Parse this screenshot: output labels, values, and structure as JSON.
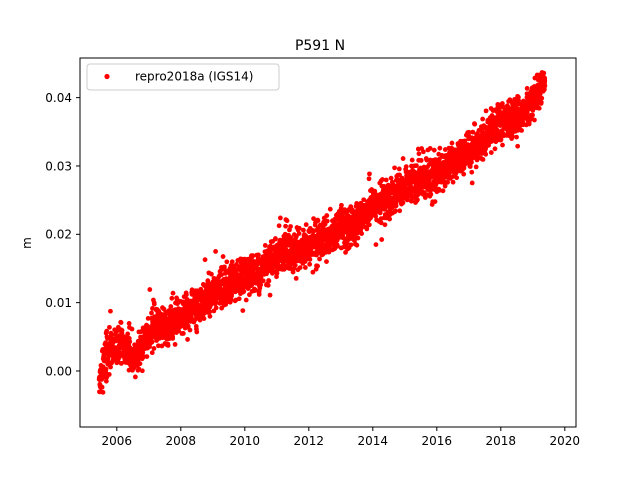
{
  "chart_data": {
    "type": "scatter",
    "title": "P591 N",
    "xlabel": "",
    "ylabel": "m",
    "xlim": [
      2004.85,
      2020.35
    ],
    "ylim": [
      -0.0082,
      0.0458
    ],
    "xticks": [
      2006,
      2008,
      2010,
      2012,
      2014,
      2016,
      2018,
      2020
    ],
    "xtick_labels": [
      "2006",
      "2008",
      "2010",
      "2012",
      "2014",
      "2016",
      "2018",
      "2020"
    ],
    "yticks": [
      0.0,
      0.01,
      0.02,
      0.03,
      0.04
    ],
    "ytick_labels": [
      "0.00",
      "0.01",
      "0.02",
      "0.03",
      "0.04"
    ],
    "grid": false,
    "legend": {
      "location": "upper-left",
      "entries": [
        "repro2018a (IGS14)"
      ]
    },
    "series": [
      {
        "name": "repro2018a (IGS14)",
        "color": "#ff0000",
        "marker": "circle",
        "x_range": [
          2005.45,
          2019.38
        ],
        "trend": {
          "y_at_2006": 0.0035,
          "slope_per_year": 0.0028
        },
        "approx_scatter_std": 0.0014,
        "x": [
          2005.5,
          2005.8,
          2006.0,
          2006.3,
          2006.6,
          2006.9,
          2007.2,
          2007.5,
          2007.8,
          2008.0,
          2008.5,
          2009.0,
          2009.5,
          2010.0,
          2010.5,
          2011.0,
          2011.5,
          2012.0,
          2012.5,
          2013.0,
          2013.5,
          2014.0,
          2014.5,
          2015.0,
          2015.5,
          2016.0,
          2016.5,
          2017.0,
          2017.5,
          2018.0,
          2018.5,
          2019.0,
          2019.3
        ],
        "y": [
          -0.0005,
          0.0035,
          0.004,
          0.0035,
          0.0015,
          0.0045,
          0.007,
          0.0065,
          0.0075,
          0.008,
          0.0095,
          0.0115,
          0.0125,
          0.014,
          0.0145,
          0.017,
          0.0175,
          0.0185,
          0.0195,
          0.021,
          0.0215,
          0.024,
          0.025,
          0.027,
          0.028,
          0.029,
          0.0305,
          0.032,
          0.0345,
          0.036,
          0.037,
          0.0395,
          0.042
        ]
      }
    ]
  }
}
